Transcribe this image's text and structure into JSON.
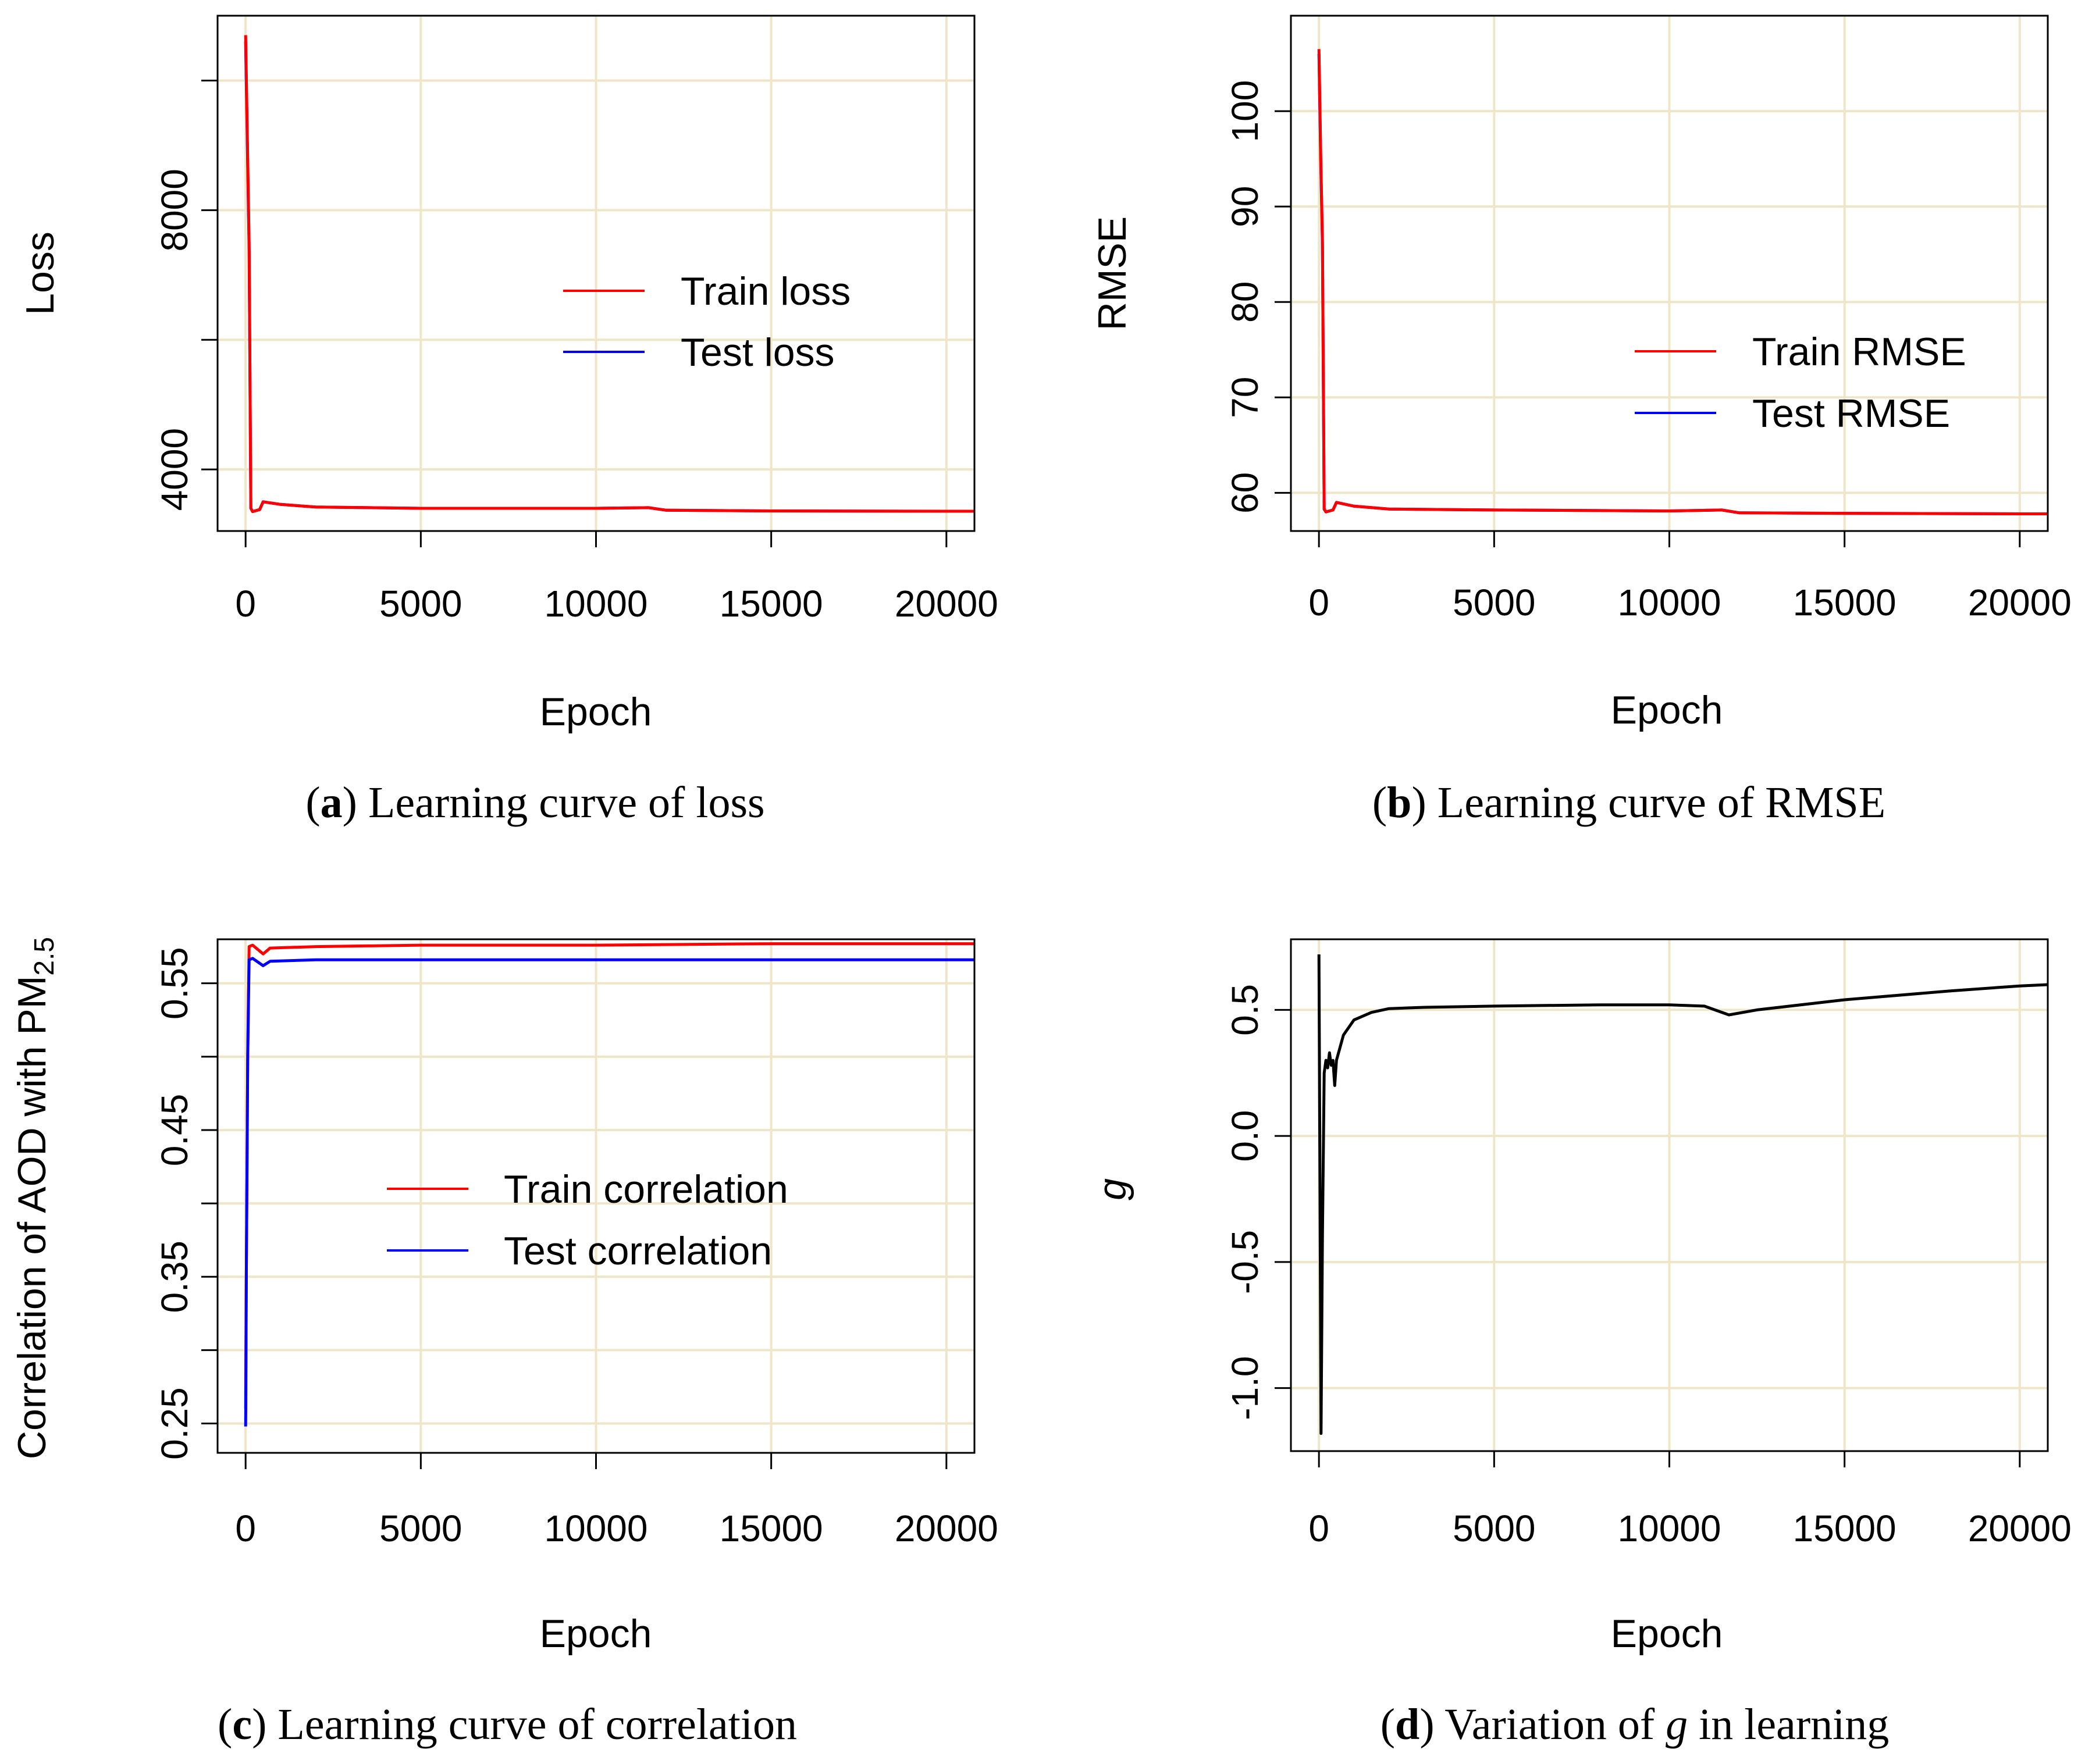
{
  "chart_data": [
    {
      "panel": "a",
      "type": "line",
      "xlabel": "Epoch",
      "ylabel": "Loss",
      "xlim": [
        -800,
        20800
      ],
      "ylim": [
        3050,
        11000
      ],
      "x_ticks": [
        0,
        5000,
        10000,
        15000,
        20000
      ],
      "x_tick_labels": [
        "0",
        "5000",
        "10000",
        "15000",
        "20000"
      ],
      "y_ticks": [
        4000,
        6000,
        8000,
        10000
      ],
      "y_tick_labels": [
        "4000",
        "",
        "8000",
        ""
      ],
      "legend": {
        "position": "center-right",
        "entries": [
          "Train loss",
          "Test loss"
        ]
      },
      "series": [
        {
          "name": "Test loss",
          "color": "#0000ff",
          "x": [
            0,
            50,
            100,
            150,
            200,
            400,
            500,
            1000,
            2000,
            5000,
            10000,
            11500,
            12000,
            15000,
            20000,
            20800
          ],
          "y": [
            10600,
            9000,
            7400,
            3400,
            3350,
            3380,
            3500,
            3460,
            3420,
            3400,
            3400,
            3410,
            3370,
            3360,
            3355,
            3355
          ]
        },
        {
          "name": "Train loss",
          "color": "#ff0000",
          "x": [
            0,
            50,
            100,
            150,
            200,
            400,
            500,
            1000,
            2000,
            5000,
            10000,
            11500,
            12000,
            15000,
            20000,
            20800
          ],
          "y": [
            10700,
            9100,
            7500,
            3400,
            3350,
            3380,
            3500,
            3460,
            3420,
            3400,
            3400,
            3410,
            3370,
            3360,
            3355,
            3355
          ]
        }
      ],
      "caption": {
        "label": "a",
        "text": "Learning curve of loss"
      }
    },
    {
      "panel": "b",
      "type": "line",
      "xlabel": "Epoch",
      "ylabel": "RMSE",
      "xlim": [
        -800,
        20800
      ],
      "ylim": [
        56,
        110
      ],
      "x_ticks": [
        0,
        5000,
        10000,
        15000,
        20000
      ],
      "x_tick_labels": [
        "0",
        "5000",
        "10000",
        "15000",
        "20000"
      ],
      "y_ticks": [
        60,
        70,
        80,
        90,
        100
      ],
      "y_tick_labels": [
        "60",
        "70",
        "80",
        "90",
        "100"
      ],
      "legend": {
        "position": "center-right",
        "entries": [
          "Train RMSE",
          "Test RMSE"
        ]
      },
      "series": [
        {
          "name": "Test RMSE",
          "color": "#0000ff",
          "x": [
            0,
            50,
            100,
            150,
            200,
            400,
            500,
            1000,
            2000,
            5000,
            10000,
            11500,
            12000,
            15000,
            20000,
            20800
          ],
          "y": [
            106,
            95,
            86,
            58.3,
            58.0,
            58.2,
            59.0,
            58.6,
            58.3,
            58.2,
            58.1,
            58.2,
            57.9,
            57.85,
            57.8,
            57.8
          ]
        },
        {
          "name": "Train RMSE",
          "color": "#ff0000",
          "x": [
            0,
            50,
            100,
            150,
            200,
            400,
            500,
            1000,
            2000,
            5000,
            10000,
            11500,
            12000,
            15000,
            20000,
            20800
          ],
          "y": [
            106.5,
            95.5,
            86.5,
            58.3,
            58.0,
            58.2,
            59.0,
            58.6,
            58.3,
            58.2,
            58.1,
            58.2,
            57.9,
            57.85,
            57.8,
            57.8
          ]
        }
      ],
      "caption": {
        "label": "b",
        "text": "Learning curve of RMSE"
      }
    },
    {
      "panel": "c",
      "type": "line",
      "xlabel": "Epoch",
      "ylabel_main": "Correlation of AOD with PM",
      "ylabel_sub": "2.5",
      "xlim": [
        -800,
        20800
      ],
      "ylim": [
        0.23,
        0.58
      ],
      "x_ticks": [
        0,
        5000,
        10000,
        15000,
        20000
      ],
      "x_tick_labels": [
        "0",
        "5000",
        "10000",
        "15000",
        "20000"
      ],
      "y_ticks": [
        0.25,
        0.3,
        0.35,
        0.4,
        0.45,
        0.5,
        0.55
      ],
      "y_tick_labels": [
        "0.25",
        "",
        "0.35",
        "",
        "0.45",
        "",
        "0.55"
      ],
      "legend": {
        "position": "center",
        "entries": [
          "Train correlation",
          "Test correlation"
        ]
      },
      "series": [
        {
          "name": "Train correlation",
          "color": "#ff0000",
          "x": [
            0,
            20,
            60,
            100,
            200,
            500,
            700,
            2000,
            5000,
            10000,
            15000,
            20000,
            20800
          ],
          "y": [
            0.26,
            0.35,
            0.5,
            0.575,
            0.576,
            0.57,
            0.574,
            0.575,
            0.576,
            0.576,
            0.577,
            0.577,
            0.577
          ]
        },
        {
          "name": "Test correlation",
          "color": "#0000ff",
          "x": [
            0,
            5,
            20,
            60,
            100,
            200,
            500,
            700,
            2000,
            5000,
            10000,
            15000,
            20000,
            20800
          ],
          "y": [
            0.248,
            0.262,
            0.35,
            0.5,
            0.566,
            0.567,
            0.562,
            0.565,
            0.566,
            0.566,
            0.566,
            0.566,
            0.566,
            0.566
          ]
        }
      ],
      "caption": {
        "label": "c",
        "text": "Learning curve of correlation"
      }
    },
    {
      "panel": "d",
      "type": "line",
      "xlabel": "Epoch",
      "ylabel": "g",
      "xlim": [
        -800,
        20800
      ],
      "ylim": [
        -1.25,
        0.78
      ],
      "x_ticks": [
        0,
        5000,
        10000,
        15000,
        20000
      ],
      "x_tick_labels": [
        "0",
        "5000",
        "10000",
        "15000",
        "20000"
      ],
      "y_ticks": [
        -1.0,
        -0.5,
        0.0,
        0.5
      ],
      "y_tick_labels": [
        "-1.0",
        "-0.5",
        "0.0",
        "0.5"
      ],
      "series": [
        {
          "name": "g",
          "color": "#000000",
          "x": [
            0,
            20,
            60,
            100,
            150,
            200,
            250,
            300,
            350,
            400,
            450,
            500,
            700,
            1000,
            1500,
            2000,
            3000,
            5000,
            8000,
            10000,
            11000,
            11700,
            12500,
            15000,
            18000,
            20000,
            20800
          ],
          "y": [
            0.72,
            0.1,
            -1.18,
            -0.4,
            0.25,
            0.3,
            0.27,
            0.33,
            0.28,
            0.3,
            0.2,
            0.3,
            0.4,
            0.46,
            0.49,
            0.505,
            0.51,
            0.515,
            0.52,
            0.52,
            0.515,
            0.48,
            0.5,
            0.54,
            0.575,
            0.595,
            0.6
          ]
        }
      ],
      "caption": {
        "label": "d",
        "text_before": "Variation of ",
        "italic": "g",
        "text_after": " in learning"
      }
    }
  ]
}
